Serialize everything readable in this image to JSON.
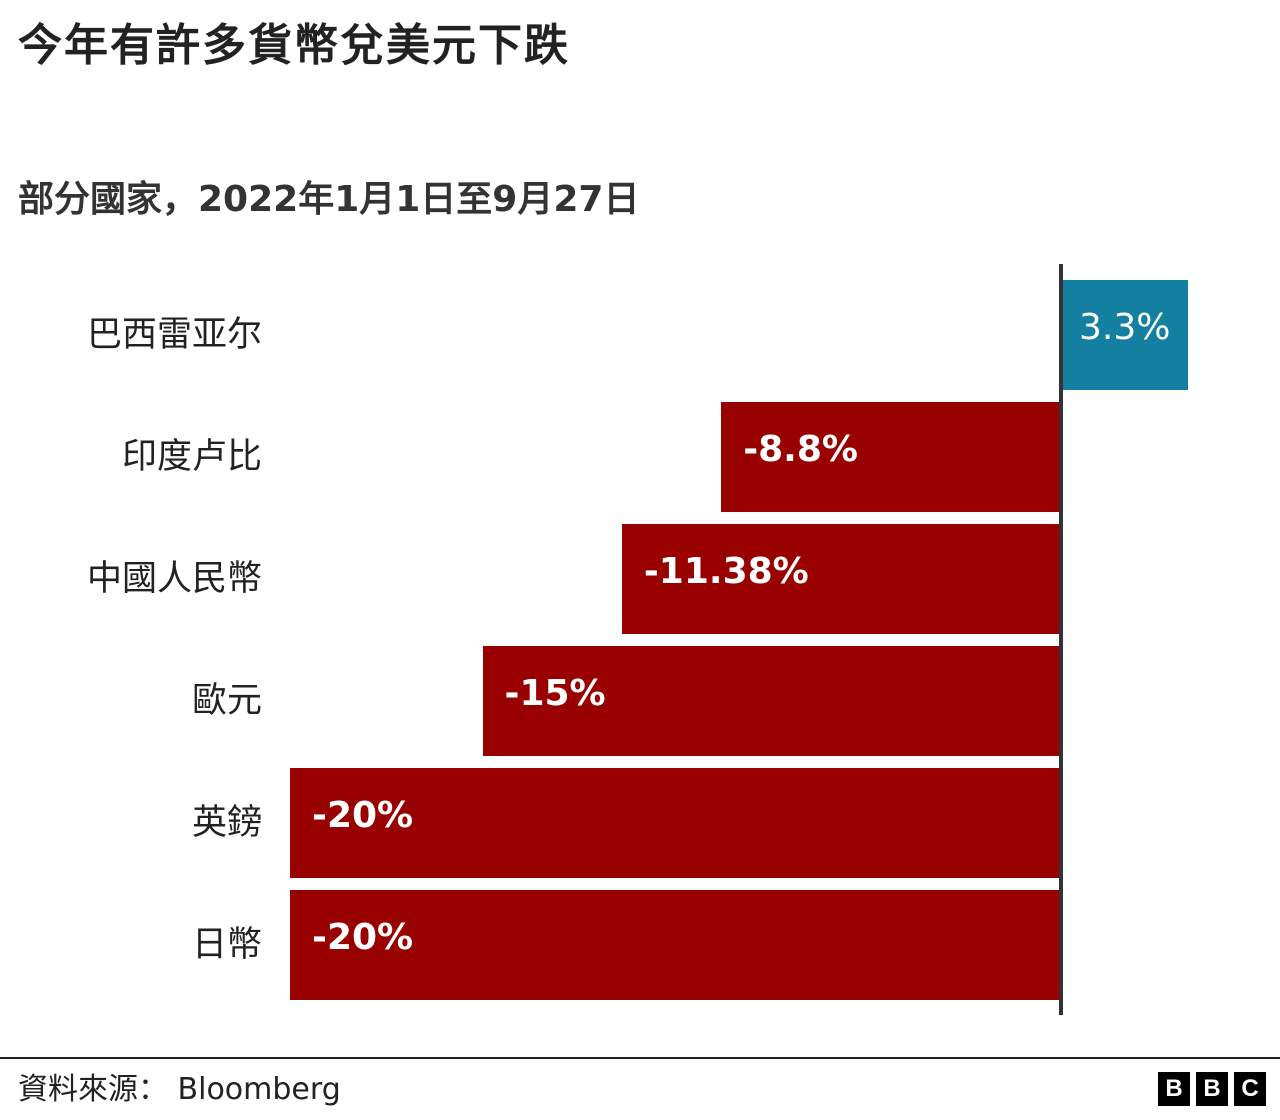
{
  "header": {
    "title": "今年有許多貨幣兌美元下跌",
    "subtitle": "部分國家，2022年1月1日至9月27日"
  },
  "colors": {
    "negative": "#990000",
    "positive": "#1380A1",
    "axis": "#333333",
    "text": "#222222"
  },
  "chart_data": {
    "type": "bar",
    "orientation": "horizontal",
    "title": "今年有許多貨幣兌美元下跌",
    "subtitle": "部分國家，2022年1月1日至9月27日",
    "categories": [
      "巴西雷亚尔",
      "印度卢比",
      "中國人民幣",
      "歐元",
      "英鎊",
      "日幣"
    ],
    "values": [
      3.3,
      -8.8,
      -11.38,
      -15,
      -20,
      -20
    ],
    "value_labels": [
      "3.3%",
      "-8.8%",
      "-11.38%",
      "-15%",
      "-20%",
      "-20%"
    ],
    "xlabel": "",
    "ylabel": "",
    "xlim": [
      -20,
      3.3
    ],
    "grid": false,
    "legend": null,
    "unit": "%"
  },
  "rows": [
    {
      "label": "巴西雷亚尔",
      "value": 3.3,
      "value_label": "3.3%"
    },
    {
      "label": "印度卢比",
      "value": -8.8,
      "value_label": "-8.8%"
    },
    {
      "label": "中國人民幣",
      "value": -11.38,
      "value_label": "-11.38%"
    },
    {
      "label": "歐元",
      "value": -15,
      "value_label": "-15%"
    },
    {
      "label": "英鎊",
      "value": -20,
      "value_label": "-20%"
    },
    {
      "label": "日幣",
      "value": -20,
      "value_label": "-20%"
    }
  ],
  "footer": {
    "source": "資料來源：  Bloomberg",
    "logo_letters": [
      "B",
      "B",
      "C"
    ]
  }
}
